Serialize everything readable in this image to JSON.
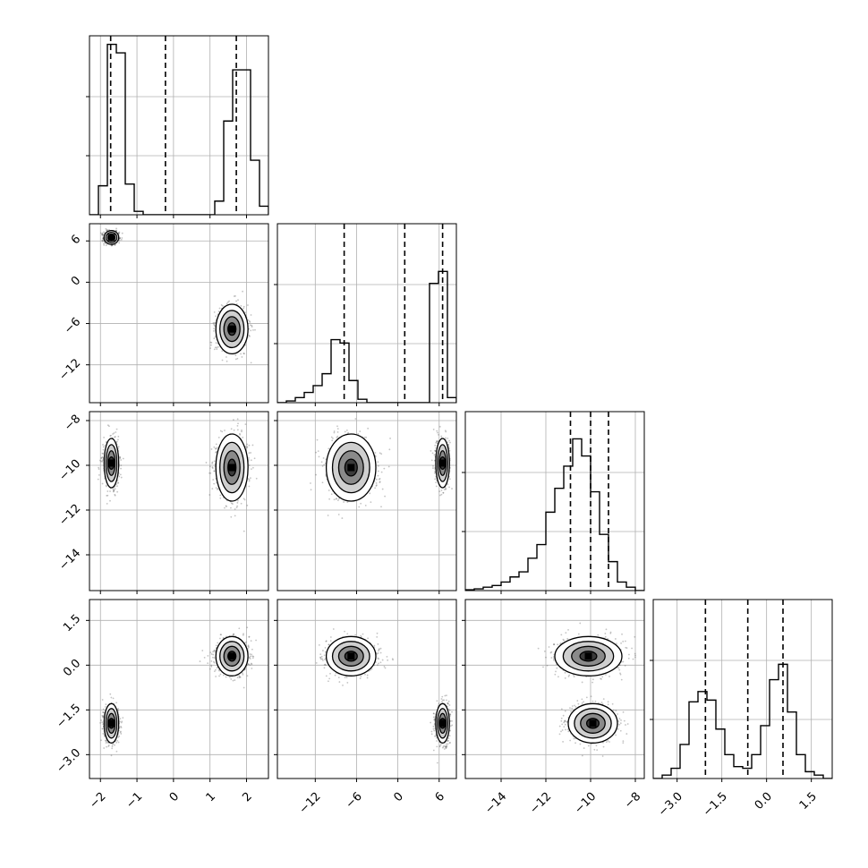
{
  "chart_data": {
    "type": "corner",
    "parameters": [
      {
        "range": [
          -2.3,
          2.6
        ],
        "ticks": [
          -2,
          -1,
          0,
          1,
          2
        ],
        "tick_labels": [
          "−2",
          "−1",
          "0",
          "1",
          "2"
        ],
        "quantiles": [
          -1.72,
          -0.22,
          1.72
        ]
      },
      {
        "range": [
          -17.5,
          8.5
        ],
        "ticks": [
          -12,
          -6,
          0,
          6
        ],
        "tick_labels": [
          "−12",
          "−6",
          "0",
          "6"
        ],
        "quantiles": [
          -7.8,
          1.0,
          6.5
        ]
      },
      {
        "range": [
          -15.6,
          -7.6
        ],
        "ticks": [
          -14,
          -12,
          -10,
          -8
        ],
        "tick_labels": [
          "−14",
          "−12",
          "−10",
          "−8"
        ],
        "quantiles": [
          -10.9,
          -10.0,
          -9.2
        ]
      },
      {
        "range": [
          -3.8,
          2.2
        ],
        "ticks": [
          -3.0,
          -1.5,
          0.0,
          1.5
        ],
        "tick_labels": [
          "−3.0",
          "−1.5",
          "0.0",
          "1.5"
        ],
        "quantiles": [
          -2.05,
          -0.63,
          0.55
        ]
      }
    ],
    "histograms": [
      {
        "edges_range": [
          -2.3,
          2.6
        ],
        "bins": 20,
        "values": [
          0,
          0.17,
          1.0,
          0.95,
          0.18,
          0.02,
          0,
          0,
          0,
          0,
          0,
          0,
          0,
          0,
          0.08,
          0.55,
          0.85,
          0.85,
          0.32,
          0.05
        ]
      },
      {
        "edges_range": [
          -17.5,
          8.5
        ],
        "bins": 20,
        "values": [
          0,
          0.01,
          0.03,
          0.06,
          0.1,
          0.17,
          0.37,
          0.35,
          0.13,
          0.02,
          0,
          0,
          0,
          0,
          0,
          0,
          0,
          0.7,
          0.77,
          0.03
        ]
      },
      {
        "edges_range": [
          -15.6,
          -7.6
        ],
        "bins": 20,
        "values": [
          0.005,
          0.01,
          0.02,
          0.03,
          0.05,
          0.08,
          0.11,
          0.19,
          0.27,
          0.46,
          0.6,
          0.73,
          0.89,
          0.79,
          0.58,
          0.33,
          0.17,
          0.05,
          0.02,
          0
        ]
      },
      {
        "edges_range": [
          -3.8,
          2.2
        ],
        "bins": 20,
        "values": [
          0,
          0.02,
          0.06,
          0.2,
          0.45,
          0.51,
          0.46,
          0.29,
          0.14,
          0.07,
          0.06,
          0.14,
          0.31,
          0.58,
          0.67,
          0.39,
          0.14,
          0.04,
          0.02,
          0
        ]
      }
    ],
    "modes": [
      {
        "weight": 0.5,
        "mean": [
          -1.7,
          6.5,
          -9.9,
          -1.95
        ],
        "std": [
          0.1,
          0.5,
          0.55,
          0.33
        ]
      },
      {
        "weight": 0.5,
        "mean": [
          1.6,
          -6.8,
          -10.1,
          0.3
        ],
        "std": [
          0.22,
          1.8,
          0.75,
          0.33
        ]
      }
    ],
    "grid": true,
    "quantile_lines": "dashed"
  }
}
